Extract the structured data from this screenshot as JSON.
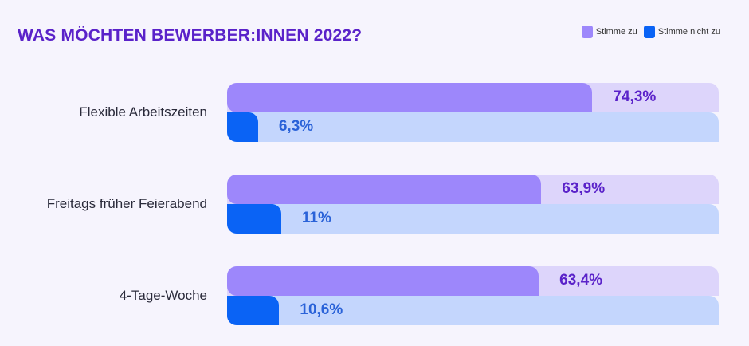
{
  "chart_data": {
    "type": "bar",
    "orientation": "horizontal",
    "title": "WAS MÖCHTEN BEWERBER:INNEN 2022?",
    "categories": [
      "Flexible Arbeitszeiten",
      "Freitags früher Feierabend",
      "4-Tage-Woche"
    ],
    "series": [
      {
        "name": "Stimme zu",
        "values": [
          74.3,
          63.9,
          63.4
        ],
        "labels": [
          "74,3%",
          "63,9%",
          "63,4%"
        ],
        "color": "#9d87fb",
        "track_color": "#ddd5fb",
        "label_color": "#5a22c9"
      },
      {
        "name": "Stimme nicht zu",
        "values": [
          6.3,
          11,
          10.6
        ],
        "labels": [
          "6,3%",
          "11%",
          "10,6%"
        ],
        "color": "#0a63f5",
        "track_color": "#c4d6fd",
        "label_color": "#2a62d8"
      }
    ],
    "xlim": [
      0,
      100
    ],
    "legend": "top-right",
    "grid": false
  }
}
